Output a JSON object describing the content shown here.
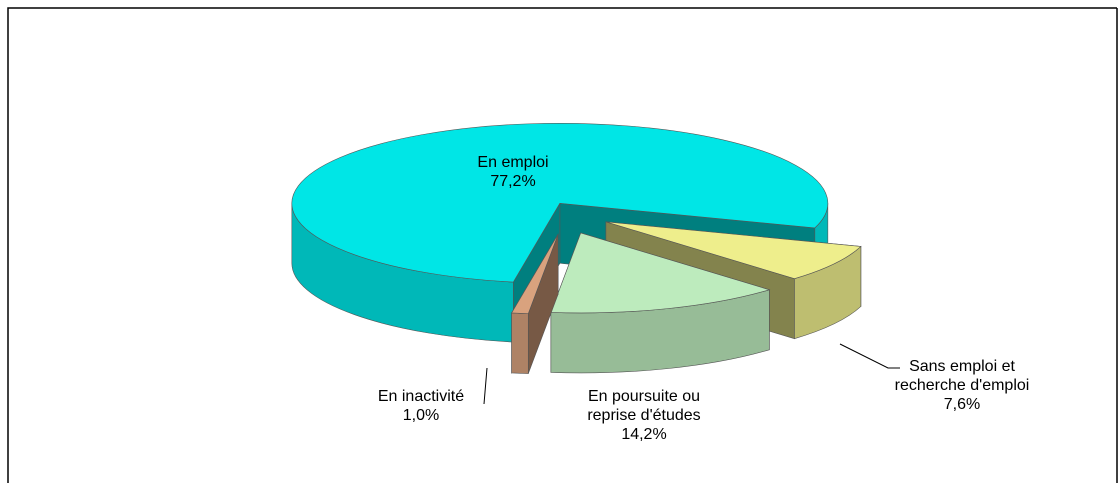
{
  "chart_data": {
    "type": "pie3d",
    "categories": [
      "En emploi",
      "Sans emploi et recherche d'emploi",
      "En poursuite ou reprise d'études",
      "En inactivité"
    ],
    "values": [
      77.2,
      7.6,
      14.2,
      1.0
    ],
    "value_labels": [
      "77,2%",
      "7,6%",
      "14,2%",
      "1,0%"
    ],
    "colors": [
      "#00e6e6",
      "#eeee8c",
      "#bdebbd",
      "#d9a27e"
    ]
  }
}
